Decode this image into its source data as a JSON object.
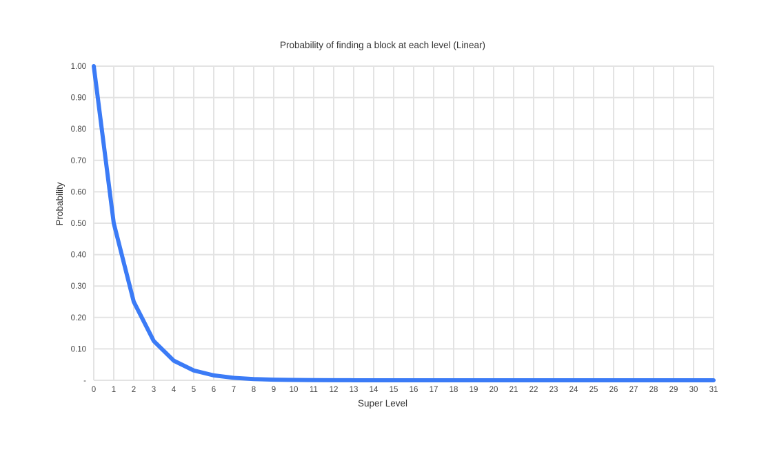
{
  "chart_data": {
    "type": "line",
    "title": "Probability of finding a block at each level (Linear)",
    "xlabel": "Super Level",
    "ylabel": "Probability",
    "x": [
      0,
      1,
      2,
      3,
      4,
      5,
      6,
      7,
      8,
      9,
      10,
      11,
      12,
      13,
      14,
      15,
      16,
      17,
      18,
      19,
      20,
      21,
      22,
      23,
      24,
      25,
      26,
      27,
      28,
      29,
      30,
      31
    ],
    "series": [
      {
        "color": "#3b7bf6",
        "values": [
          1.0,
          0.5,
          0.25,
          0.125,
          0.0625,
          0.03125,
          0.015625,
          0.0078125,
          0.00390625,
          0.001953125,
          0.0009765625,
          0.00048828125,
          0.000244140625,
          0.0001220703125,
          6.103515625e-05,
          3.0517578125e-05,
          1.52587890625e-05,
          7.62939453125e-06,
          3.814697265625e-06,
          1.9073486328125e-06,
          9.5367431640625e-07,
          4.76837158203125e-07,
          2.384185791015625e-07,
          1.1920928955078125e-07,
          5.960464477539063e-08,
          2.9802322387695312e-08,
          1.4901161193847656e-08,
          7.450580596923828e-09,
          3.725290298461914e-09,
          1.862645149230957e-09,
          9.313225746154785e-10,
          4.656612873077393e-10
        ]
      }
    ],
    "ylim": [
      0,
      1
    ],
    "xlim": [
      0,
      31
    ],
    "y_ticks": [
      0,
      0.1,
      0.2,
      0.3,
      0.4,
      0.5,
      0.6,
      0.7,
      0.8,
      0.9,
      1.0
    ],
    "y_tick_labels": [
      "-",
      "0.10",
      "0.20",
      "0.30",
      "0.40",
      "0.50",
      "0.60",
      "0.70",
      "0.80",
      "0.90",
      "1.00"
    ],
    "x_tick_labels": [
      "0",
      "1",
      "2",
      "3",
      "4",
      "5",
      "6",
      "7",
      "8",
      "9",
      "10",
      "11",
      "12",
      "13",
      "14",
      "15",
      "16",
      "17",
      "18",
      "19",
      "20",
      "21",
      "22",
      "23",
      "24",
      "25",
      "26",
      "27",
      "28",
      "29",
      "30",
      "31"
    ],
    "grid": true,
    "legend": "none"
  }
}
